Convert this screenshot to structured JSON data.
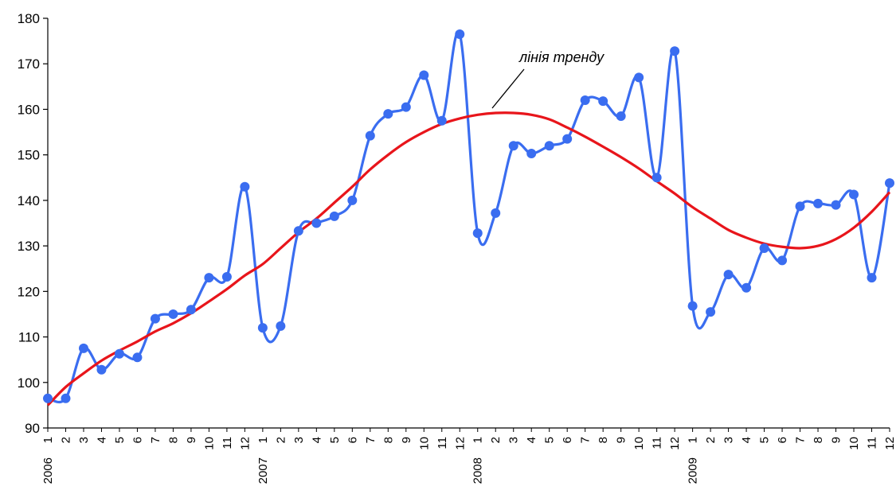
{
  "chart_data": {
    "type": "line",
    "ylim": [
      90,
      180
    ],
    "yticks": [
      90,
      100,
      110,
      120,
      130,
      140,
      150,
      160,
      170,
      180
    ],
    "months": [
      "1",
      "2",
      "3",
      "4",
      "5",
      "6",
      "7",
      "8",
      "9",
      "10",
      "11",
      "12"
    ],
    "years": [
      "2006",
      "2007",
      "2008",
      "2009"
    ],
    "grid": false,
    "legend": "none",
    "annotation": "лінія тренду",
    "series": [
      {
        "role": "data",
        "color": "#3a6df0",
        "values": [
          96.5,
          96.5,
          107.5,
          102.8,
          106.3,
          105.5,
          114.0,
          115.0,
          116.0,
          123.0,
          123.2,
          143.0,
          112.0,
          112.4,
          133.3,
          135.0,
          136.5,
          140.0,
          154.2,
          159.0,
          160.5,
          167.5,
          157.5,
          176.5,
          132.8,
          137.2,
          152.0,
          150.3,
          152.0,
          153.5,
          162.0,
          161.8,
          158.5,
          167.0,
          145.0,
          172.8,
          116.8,
          115.5,
          123.7,
          120.8,
          129.5,
          126.8,
          138.7,
          139.3,
          139.0,
          141.3,
          123.0,
          143.8
        ]
      },
      {
        "role": "trend",
        "color": "#e8151b",
        "values": [
          95.0,
          99.0,
          102.0,
          104.8,
          107.0,
          109.0,
          111.2,
          113.0,
          115.2,
          117.8,
          120.5,
          123.5,
          126.0,
          129.5,
          133.0,
          136.0,
          139.5,
          143.0,
          146.8,
          150.0,
          152.8,
          155.0,
          156.8,
          158.0,
          158.8,
          159.2,
          159.2,
          158.8,
          157.8,
          156.0,
          154.0,
          151.8,
          149.5,
          147.0,
          144.2,
          141.5,
          138.5,
          136.0,
          133.5,
          131.8,
          130.5,
          129.8,
          129.5,
          130.0,
          131.5,
          134.0,
          137.5,
          141.8
        ]
      }
    ]
  }
}
